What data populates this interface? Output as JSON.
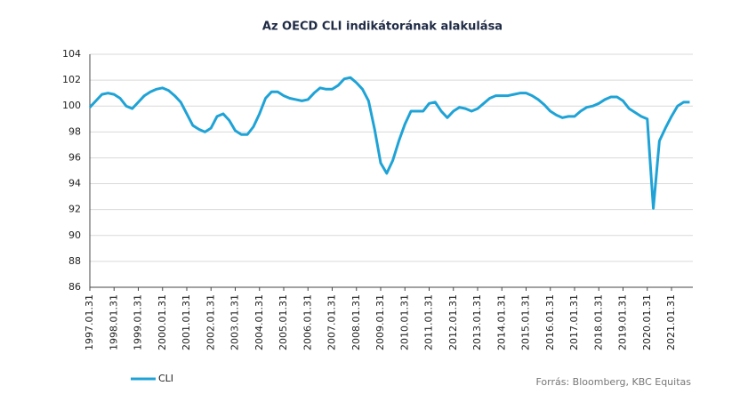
{
  "chart_data": {
    "type": "line",
    "title": "Az OECD CLI indikátorának alakulása",
    "source": "Forrás: Bloomberg,  KBC Equitas",
    "categories": [
      "1997.01.31",
      null,
      null,
      null,
      "1998.01.31",
      null,
      null,
      null,
      "1999.01.31",
      null,
      null,
      null,
      "2000.01.31",
      null,
      null,
      null,
      "2001.01.31",
      null,
      null,
      null,
      "2002.01.31",
      null,
      null,
      null,
      "2003.01.31",
      null,
      null,
      null,
      "2004.01.31",
      null,
      null,
      null,
      "2005.01.31",
      null,
      null,
      null,
      "2006.01.31",
      null,
      null,
      null,
      "2007.01.31",
      null,
      null,
      null,
      "2008.01.31",
      null,
      null,
      null,
      "2009.01.31",
      null,
      null,
      null,
      "2010.01.31",
      null,
      null,
      null,
      "2011.01.31",
      null,
      null,
      null,
      "2012.01.31",
      null,
      null,
      null,
      "2013.01.31",
      null,
      null,
      null,
      "2014.01.31",
      null,
      null,
      null,
      "2015.01.31",
      null,
      null,
      null,
      "2016.01.31",
      null,
      null,
      null,
      "2017.01.31",
      null,
      null,
      null,
      "2018.01.31",
      null,
      null,
      null,
      "2019.01.31",
      null,
      null,
      null,
      "2020.01.31",
      null,
      null,
      null,
      "2021.01.31",
      null,
      null,
      null
    ],
    "series": [
      {
        "name": "CLI",
        "color": "#1fa3d6",
        "values": [
          99.9,
          100.4,
          100.9,
          101.0,
          100.9,
          100.6,
          100.0,
          99.8,
          100.3,
          100.8,
          101.1,
          101.3,
          101.4,
          101.2,
          100.8,
          100.3,
          99.4,
          98.5,
          98.2,
          98.0,
          98.3,
          99.2,
          99.4,
          98.9,
          98.1,
          97.8,
          97.8,
          98.4,
          99.4,
          100.6,
          101.1,
          101.1,
          100.8,
          100.6,
          100.5,
          100.4,
          100.5,
          101.0,
          101.4,
          101.3,
          101.3,
          101.6,
          102.1,
          102.2,
          101.8,
          101.3,
          100.4,
          98.2,
          95.6,
          94.8,
          95.8,
          97.3,
          98.6,
          99.6,
          99.6,
          99.6,
          100.2,
          100.3,
          99.6,
          99.1,
          99.6,
          99.9,
          99.8,
          99.6,
          99.8,
          100.2,
          100.6,
          100.8,
          100.8,
          100.8,
          100.9,
          101.0,
          101.0,
          100.8,
          100.5,
          100.1,
          99.6,
          99.3,
          99.1,
          99.2,
          99.2,
          99.6,
          99.9,
          100.0,
          100.2,
          100.5,
          100.7,
          100.7,
          100.4,
          99.8,
          99.5,
          99.2,
          99.0,
          92.1,
          97.3,
          98.3,
          99.2,
          100.0,
          100.3,
          100.3
        ]
      }
    ],
    "ylim": [
      86,
      104
    ],
    "yticks": [
      86,
      88,
      90,
      92,
      94,
      96,
      98,
      100,
      102,
      104
    ],
    "grid": true,
    "legend": "bottom-left"
  }
}
